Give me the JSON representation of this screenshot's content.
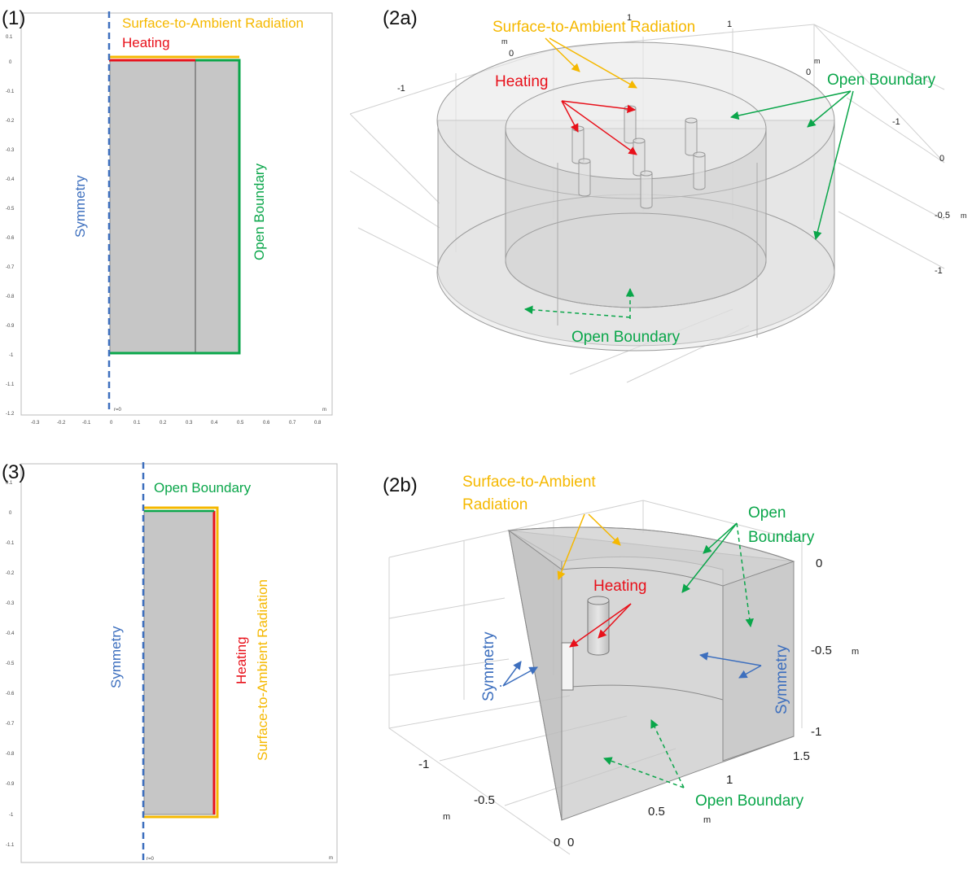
{
  "panel_labels": {
    "p1": "(1)",
    "p2a": "(2a)",
    "p3": "(3)",
    "p2b": "(2b)"
  },
  "colors": {
    "radiation": "#f5b800",
    "heating": "#e8101a",
    "open": "#0aa64a",
    "symmetry": "#3d6fbe",
    "domain_fill": "#c8c8c8"
  },
  "panel1": {
    "radiation": "Surface-to-Ambient Radiation",
    "heating": "Heating",
    "symmetry": "Symmetry",
    "open": "Open Boundary",
    "unit": "m",
    "origin": "r=0",
    "y_ticks": [
      "0.1",
      "0",
      "-0.1",
      "-0.2",
      "-0.3",
      "-0.4",
      "-0.5",
      "-0.6",
      "-0.7",
      "-0.8",
      "-0.9",
      "-1",
      "-1.1",
      "-1.2"
    ],
    "x_ticks": [
      "-0.3",
      "-0.2",
      "-0.1",
      "0",
      "0.1",
      "0.2",
      "0.3",
      "0.4",
      "0.5",
      "0.6",
      "0.7",
      "0.8"
    ]
  },
  "panel2a": {
    "radiation": "Surface-to-Ambient Radiation",
    "heating": "Heating",
    "open_top": "Open Boundary",
    "open_bottom": "Open Boundary",
    "axis_ticks": {
      "t1a": "1",
      "t1b": "1",
      "tm1": "m",
      "t0a": "0",
      "tm2": "m",
      "t0b": "0",
      "tneg1a": "-1",
      "tneg1b": "-1",
      "t0c": "0",
      "tneg05": "-0.5",
      "tmz": "m",
      "tneg1c": "-1"
    }
  },
  "panel3": {
    "open": "Open Boundary",
    "symmetry": "Symmetry",
    "heating": "Heating",
    "radiation": "Surface-to-Ambient Radiation",
    "unit": "m",
    "origin": "r=0",
    "y_ticks": [
      "0.1",
      "0",
      "-0.1",
      "-0.2",
      "-0.3",
      "-0.4",
      "-0.5",
      "-0.6",
      "-0.7",
      "-0.8",
      "-0.9",
      "-1",
      "-1.1"
    ]
  },
  "panel2b": {
    "radiation_line1": "Surface-to-Ambient",
    "radiation_line2": "Radiation",
    "heating": "Heating",
    "open_top_line1": "Open",
    "open_top_line2": "Boundary",
    "open_bottom": "Open Boundary",
    "symmetry_left": "Symmetry",
    "symmetry_right": "Symmetry",
    "axis_ticks": {
      "z0": "0",
      "zm05": "-0.5",
      "zm": "m",
      "zm1": "-1",
      "y15": "1.5",
      "y1": "1",
      "y05": "0.5",
      "ym": "m",
      "y0": "0",
      "x0": "0",
      "xm05": "-0.5",
      "xm1": "-1",
      "xm": "m"
    }
  }
}
